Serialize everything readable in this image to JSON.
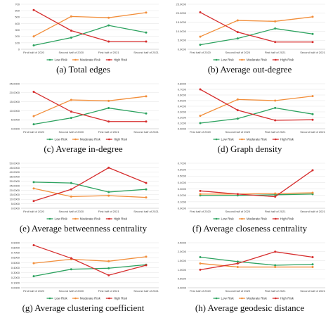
{
  "colors": {
    "Low Risk": "#2ca25f",
    "Moderate Risk": "#f28e3a",
    "High Risk": "#d62d2d"
  },
  "chart_data": [
    {
      "type": "line",
      "caption": "(a) Total edges",
      "categories": [
        "First half of 2020",
        "Second half of 2020",
        "First half of 2021",
        "Second half of 2021"
      ],
      "ylim": [
        0,
        700
      ],
      "yticks": [
        "0",
        "100",
        "200",
        "300",
        "400",
        "500",
        "600",
        "700"
      ],
      "series": [
        {
          "name": "Low Risk",
          "values": [
            60,
            180,
            370,
            260
          ]
        },
        {
          "name": "Moderate Risk",
          "values": [
            200,
            510,
            490,
            570
          ]
        },
        {
          "name": "High Risk",
          "values": [
            610,
            290,
            120,
            120
          ]
        }
      ]
    },
    {
      "type": "line",
      "caption": "(b) Average out-degree",
      "categories": [
        "First half of 2020",
        "Second half of 2020",
        "First half of 2021",
        "Second half of 2021"
      ],
      "ylim": [
        0,
        25
      ],
      "yticks": [
        "0.0000",
        "5.0000",
        "10.0000",
        "15.0000",
        "20.0000",
        "25.0000"
      ],
      "series": [
        {
          "name": "Low Risk",
          "values": [
            2.5,
            6,
            11.5,
            8.5
          ]
        },
        {
          "name": "Moderate Risk",
          "values": [
            7,
            16,
            15.5,
            18
          ]
        },
        {
          "name": "High Risk",
          "values": [
            20.5,
            9.5,
            4,
            4
          ]
        }
      ]
    },
    {
      "type": "line",
      "caption": "(c) Average in-degree",
      "categories": [
        "First half of 2020",
        "Second half of 2020",
        "First half of 2021",
        "Second half of 2021"
      ],
      "ylim": [
        0,
        25
      ],
      "yticks": [
        "0.0000",
        "5.0000",
        "10.0000",
        "15.0000",
        "20.0000",
        "25.0000"
      ],
      "series": [
        {
          "name": "Low Risk",
          "values": [
            2.5,
            6,
            11.5,
            8.5
          ]
        },
        {
          "name": "Moderate Risk",
          "values": [
            7,
            16,
            15.5,
            18
          ]
        },
        {
          "name": "High Risk",
          "values": [
            20.5,
            9.5,
            4,
            4
          ]
        }
      ]
    },
    {
      "type": "line",
      "caption": "(d) Graph density",
      "categories": [
        "First half of 2020",
        "Second half of 2020",
        "First half of 2021",
        "Second half of 2021"
      ],
      "ylim": [
        0,
        0.8
      ],
      "yticks": [
        "0.0000",
        "0.1000",
        "0.2000",
        "0.3000",
        "0.4000",
        "0.5000",
        "0.6000",
        "0.7000",
        "0.8000"
      ],
      "series": [
        {
          "name": "Low Risk",
          "values": [
            0.1,
            0.18,
            0.37,
            0.26
          ]
        },
        {
          "name": "Moderate Risk",
          "values": [
            0.23,
            0.52,
            0.5,
            0.58
          ]
        },
        {
          "name": "High Risk",
          "values": [
            0.7,
            0.33,
            0.15,
            0.16
          ]
        }
      ]
    },
    {
      "type": "line",
      "caption": "(e) Average betweenness centrality",
      "categories": [
        "First half of 2020",
        "Second half of 2020",
        "First half of 2021",
        "Second half of 2021"
      ],
      "ylim": [
        0,
        50
      ],
      "yticks": [
        "0.0000",
        "5.0000",
        "10.0000",
        "15.0000",
        "20.0000",
        "25.0000",
        "30.0000",
        "35.0000",
        "40.0000",
        "45.0000",
        "50.0000"
      ],
      "series": [
        {
          "name": "Low Risk",
          "values": [
            29,
            28,
            18,
            21
          ]
        },
        {
          "name": "Moderate Risk",
          "values": [
            22,
            13,
            14,
            12
          ]
        },
        {
          "name": "High Risk",
          "values": [
            8,
            21,
            45,
            28
          ]
        }
      ]
    },
    {
      "type": "line",
      "caption": "(f) Average closeness centrality",
      "categories": [
        "First half of 2020",
        "Second half of 2020",
        "First half of 2021",
        "Second half of 2021"
      ],
      "ylim": [
        0,
        0.7
      ],
      "yticks": [
        "0.0000",
        "0.1000",
        "0.2000",
        "0.3000",
        "0.4000",
        "0.5000",
        "0.6000",
        "0.7000"
      ],
      "series": [
        {
          "name": "Low Risk",
          "values": [
            0.2,
            0.2,
            0.21,
            0.22
          ]
        },
        {
          "name": "Moderate Risk",
          "values": [
            0.22,
            0.22,
            0.23,
            0.24
          ]
        },
        {
          "name": "High Risk",
          "values": [
            0.27,
            0.22,
            0.18,
            0.59
          ]
        }
      ]
    },
    {
      "type": "line",
      "caption": "(g) Average clustering coefficient",
      "categories": [
        "First half of 2020",
        "Second half of 2020",
        "First half of 2021",
        "Second half of 2021"
      ],
      "ylim": [
        0,
        0.9
      ],
      "yticks": [
        "0.0000",
        "0.1000",
        "0.2000",
        "0.3000",
        "0.4000",
        "0.5000",
        "0.6000",
        "0.7000",
        "0.8000",
        "0.9000"
      ],
      "series": [
        {
          "name": "Low Risk",
          "values": [
            0.23,
            0.37,
            0.39,
            0.46
          ]
        },
        {
          "name": "Moderate Risk",
          "values": [
            0.49,
            0.57,
            0.53,
            0.62
          ]
        },
        {
          "name": "High Risk",
          "values": [
            0.85,
            0.59,
            0.25,
            0.45
          ]
        }
      ]
    },
    {
      "type": "line",
      "caption": "(h) Average geodesic distance",
      "categories": [
        "First half of 2020",
        "Second half of 2020",
        "First half of 2021",
        "Second half of 2021"
      ],
      "ylim": [
        0,
        2.5
      ],
      "yticks": [
        "0.0000",
        "0.5000",
        "1.0000",
        "1.5000",
        "2.0000",
        "2.5000"
      ],
      "series": [
        {
          "name": "Low Risk",
          "values": [
            1.7,
            1.45,
            1.25,
            1.3
          ]
        },
        {
          "name": "Moderate Risk",
          "values": [
            1.35,
            1.15,
            1.15,
            1.15
          ]
        },
        {
          "name": "High Risk",
          "values": [
            1.0,
            1.35,
            2.0,
            1.7
          ]
        }
      ]
    }
  ]
}
